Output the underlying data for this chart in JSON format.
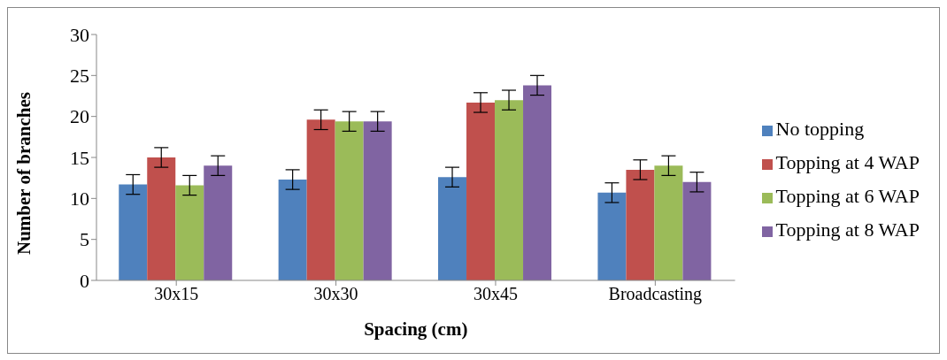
{
  "chart_data": {
    "type": "bar",
    "xlabel": "Spacing (cm)",
    "ylabel": "Number of branches",
    "categories": [
      "30x15",
      "30x30",
      "30x45",
      "Broadcasting"
    ],
    "series": [
      {
        "name": "No topping",
        "color": "#4f81bd",
        "values": [
          11.7,
          12.3,
          12.6,
          10.7
        ],
        "errors": [
          1.2,
          1.2,
          1.2,
          1.2
        ]
      },
      {
        "name": "Topping at 4 WAP",
        "color": "#c0504d",
        "values": [
          15.0,
          19.6,
          21.7,
          13.5
        ],
        "errors": [
          1.2,
          1.2,
          1.2,
          1.2
        ]
      },
      {
        "name": "Topping at 6 WAP",
        "color": "#9bbb59",
        "values": [
          11.6,
          19.4,
          22.0,
          14.0
        ],
        "errors": [
          1.2,
          1.2,
          1.2,
          1.2
        ]
      },
      {
        "name": "Topping at 8 WAP",
        "color": "#8064a2",
        "values": [
          14.0,
          19.4,
          23.8,
          12.0
        ],
        "errors": [
          1.2,
          1.2,
          1.2,
          1.2
        ]
      }
    ],
    "ylim": [
      0,
      30
    ],
    "yticks": [
      0,
      5,
      10,
      15,
      20,
      25,
      30
    ],
    "grid": false,
    "legend": "right"
  }
}
